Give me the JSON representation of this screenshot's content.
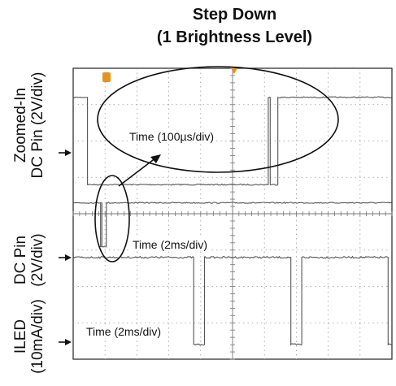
{
  "header": {
    "title_line1": "Step Down",
    "title_line2": "(1 Brightness Level)"
  },
  "chart_data": {
    "type": "line",
    "title": "Step Down (1 Brightness Level)",
    "grid": true,
    "divisions": {
      "x": 10,
      "y": 8
    },
    "series": [
      {
        "name": "Zoomed-In DC Pin (2V/div)",
        "label_line1": "Zoomed-In",
        "label_line2": "DC Pin (2V/div)",
        "time_scale": "Time (100µs/div)",
        "high_div": 7.2,
        "low_div": 4.8,
        "low_intervals": [
          [
            0.45,
            6.12
          ],
          [
            6.18,
            6.42
          ]
        ],
        "color": "#555555"
      },
      {
        "name": "DC Pin (2V/div)",
        "label_line1": "DC Pin",
        "label_line2": "(2V/div)",
        "time_scale": "Time (2ms/div)",
        "high_div": 4.3,
        "low_div": 3.1,
        "low_intervals": [
          [
            0.82,
            0.86
          ],
          [
            0.9,
            1.04
          ]
        ],
        "color": "#555555"
      },
      {
        "name": "ILED (10mA/div)",
        "label_line1": "ILED",
        "label_line2": "(10mA/div)",
        "time_scale": "Time (2ms/div)",
        "high_div": 2.8,
        "low_div": 0.4,
        "low_intervals": [
          [
            3.78,
            4.12
          ],
          [
            6.83,
            7.17
          ],
          [
            9.88,
            10.0
          ]
        ],
        "color": "#555555"
      }
    ]
  }
}
